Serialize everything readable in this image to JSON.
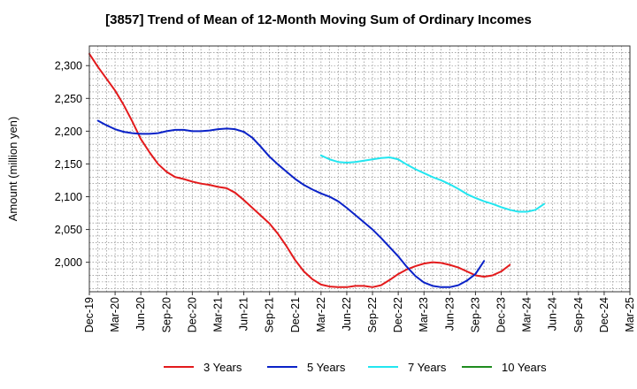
{
  "chart_data": {
    "type": "line",
    "title": "[3857]  Trend of Mean of 12-Month Moving Sum of Ordinary Incomes",
    "xlabel": "",
    "ylabel": "Amount (million yen)",
    "x_tick_labels": [
      "Dec-19",
      "Mar-20",
      "Jun-20",
      "Sep-20",
      "Dec-20",
      "Mar-21",
      "Jun-21",
      "Sep-21",
      "Dec-21",
      "Mar-22",
      "Jun-22",
      "Sep-22",
      "Dec-22",
      "Mar-23",
      "Jun-23",
      "Sep-23",
      "Dec-23",
      "Mar-24",
      "Jun-24",
      "Sep-24",
      "Dec-24",
      "Mar-25"
    ],
    "y_ticks": [
      2000,
      2050,
      2100,
      2150,
      2200,
      2250,
      2300
    ],
    "y_tick_labels": [
      "2,000",
      "2,050",
      "2,100",
      "2,150",
      "2,200",
      "2,250",
      "2,300"
    ],
    "ylim": [
      1955,
      2330
    ],
    "grid": true,
    "legend_position": "bottom",
    "series": [
      {
        "name": "3 Years",
        "color": "#e31a1c",
        "start_month_index": 0,
        "values": [
          2318,
          2298,
          2280,
          2262,
          2240,
          2215,
          2188,
          2168,
          2150,
          2138,
          2130,
          2127,
          2123,
          2120,
          2118,
          2115,
          2113,
          2106,
          2095,
          2083,
          2071,
          2059,
          2043,
          2024,
          2003,
          1986,
          1974,
          1966,
          1963,
          1962,
          1962,
          1964,
          1964,
          1962,
          1965,
          1973,
          1982,
          1989,
          1994,
          1998,
          2000,
          1999,
          1996,
          1992,
          1986,
          1980,
          1978,
          1980,
          1986,
          1996
        ]
      },
      {
        "name": "5 Years",
        "color": "#0a22c8",
        "start_month_index": 1,
        "values": [
          2216,
          2209,
          2203,
          2199,
          2197,
          2196,
          2196,
          2197,
          2200,
          2202,
          2202,
          2200,
          2200,
          2201,
          2203,
          2204,
          2203,
          2199,
          2190,
          2176,
          2161,
          2149,
          2138,
          2127,
          2118,
          2111,
          2105,
          2100,
          2093,
          2083,
          2072,
          2061,
          2050,
          2037,
          2023,
          2009,
          1993,
          1979,
          1969,
          1964,
          1962,
          1962,
          1965,
          1972,
          1982,
          2002
        ]
      },
      {
        "name": "7 Years",
        "color": "#22e6f0",
        "start_month_index": 27,
        "values": [
          2163,
          2157,
          2153,
          2152,
          2153,
          2155,
          2157,
          2159,
          2160,
          2157,
          2149,
          2142,
          2136,
          2130,
          2125,
          2119,
          2112,
          2104,
          2098,
          2093,
          2089,
          2084,
          2080,
          2077,
          2077,
          2080,
          2089
        ]
      },
      {
        "name": "10 Years",
        "color": "#1e8c1e",
        "start_month_index": 0,
        "values": []
      }
    ]
  }
}
